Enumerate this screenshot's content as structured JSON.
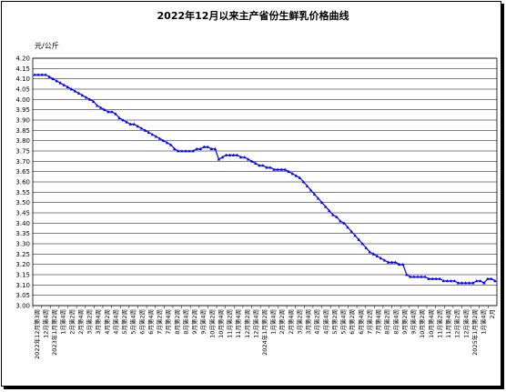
{
  "chart_data": {
    "type": "line",
    "title": "2022年12月以来主产省份生鲜乳价格曲线",
    "ylabel": "元/公斤",
    "ylim": [
      3.0,
      4.2
    ],
    "yticks": [
      "4.20",
      "4.15",
      "4.10",
      "4.05",
      "4.00",
      "3.95",
      "3.90",
      "3.85",
      "3.80",
      "3.75",
      "3.70",
      "3.65",
      "3.60",
      "3.55",
      "3.50",
      "3.45",
      "3.40",
      "3.35",
      "3.30",
      "3.25",
      "3.20",
      "3.15",
      "3.10",
      "3.05",
      "3.00"
    ],
    "xticks": [
      "2022年12月第3周",
      "12月第4周",
      "2023年1月第2周",
      "1月第4周",
      "2月第2周",
      "2月第4周",
      "3月第2周",
      "3月第4周",
      "4月第2周",
      "4月第4周",
      "5月第2周",
      "5月第4周",
      "6月第2周",
      "6月第4周",
      "7月第2周",
      "7月第4周",
      "8月第2周",
      "8月第4周",
      "9月第2周",
      "9月第4周",
      "10月第2周",
      "10月第4周",
      "11月第2周",
      "11月第4周",
      "12月第2周",
      "12月第4周",
      "2024年1月第2周",
      "1月第4周",
      "2月第2周",
      "2月第4周",
      "3月第2周",
      "3月第4周",
      "4月第2周",
      "4月第4周",
      "5月第2周",
      "5月第4周",
      "6月第2周",
      "6月第4周",
      "7月第2周",
      "7月第4周",
      "8月第2周",
      "8月第4周",
      "9月第2周",
      "9月第4周",
      "10月第2周",
      "10月第4周",
      "11月第2周",
      "11月第4周",
      "12月第2周",
      "12月第4周",
      "2025年1月第2周",
      "1月第4周",
      "2月"
    ],
    "grid": true,
    "series": [
      {
        "name": "",
        "color": "#0000ff",
        "values": [
          4.12,
          4.12,
          4.12,
          4.12,
          4.11,
          4.1,
          4.09,
          4.08,
          4.07,
          4.06,
          4.05,
          4.04,
          4.03,
          4.02,
          4.01,
          4.0,
          3.99,
          3.97,
          3.96,
          3.95,
          3.94,
          3.94,
          3.93,
          3.91,
          3.9,
          3.89,
          3.88,
          3.88,
          3.87,
          3.86,
          3.85,
          3.84,
          3.83,
          3.82,
          3.81,
          3.8,
          3.79,
          3.78,
          3.76,
          3.75,
          3.75,
          3.75,
          3.75,
          3.75,
          3.76,
          3.76,
          3.77,
          3.77,
          3.76,
          3.76,
          3.71,
          3.72,
          3.73,
          3.73,
          3.73,
          3.73,
          3.72,
          3.72,
          3.71,
          3.7,
          3.69,
          3.68,
          3.68,
          3.67,
          3.67,
          3.66,
          3.66,
          3.66,
          3.66,
          3.65,
          3.64,
          3.63,
          3.62,
          3.6,
          3.58,
          3.56,
          3.54,
          3.52,
          3.5,
          3.48,
          3.46,
          3.44,
          3.43,
          3.41,
          3.4,
          3.38,
          3.36,
          3.34,
          3.32,
          3.3,
          3.28,
          3.26,
          3.25,
          3.24,
          3.23,
          3.22,
          3.21,
          3.21,
          3.21,
          3.2,
          3.2,
          3.15,
          3.14,
          3.14,
          3.14,
          3.14,
          3.14,
          3.13,
          3.13,
          3.13,
          3.13,
          3.12,
          3.12,
          3.12,
          3.12,
          3.11,
          3.11,
          3.11,
          3.11,
          3.11,
          3.12,
          3.12,
          3.11,
          3.13,
          3.13,
          3.12
        ]
      }
    ]
  }
}
